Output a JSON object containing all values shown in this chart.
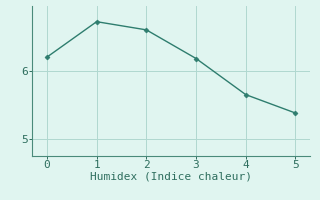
{
  "x": [
    0,
    1,
    2,
    3,
    4,
    5
  ],
  "y": [
    6.2,
    6.72,
    6.6,
    6.18,
    5.65,
    5.38
  ],
  "line_color": "#2e7d6e",
  "marker": "D",
  "marker_size": 2.5,
  "line_width": 1.0,
  "background_color": "#e0f5f0",
  "grid_color": "#b0d8d0",
  "axis_color": "#4a8a7a",
  "xlabel": "Humidex (Indice chaleur)",
  "xlabel_fontsize": 8,
  "xticks": [
    0,
    1,
    2,
    3,
    4,
    5
  ],
  "yticks": [
    5,
    6
  ],
  "ylim": [
    4.75,
    6.95
  ],
  "xlim": [
    -0.3,
    5.3
  ],
  "tick_fontsize": 8,
  "tick_color": "#2e6e5e",
  "font_family": "monospace"
}
